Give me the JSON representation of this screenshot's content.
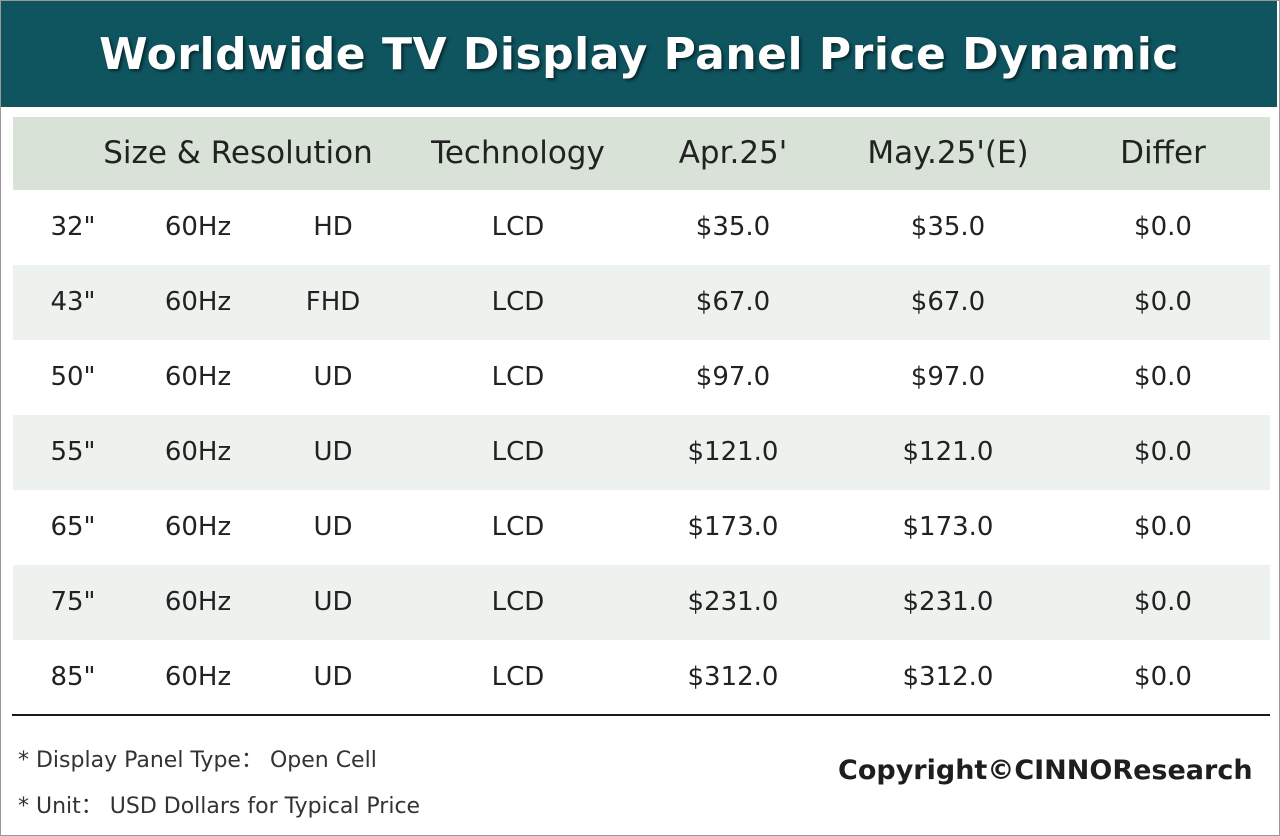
{
  "chart_data": {
    "type": "table",
    "title": "Worldwide TV Display Panel Price Dynamic",
    "columns": [
      "Size & Resolution",
      "Technology",
      "Apr.25'",
      "May.25'(E)",
      "Differ"
    ],
    "rows": [
      {
        "size": "32\"",
        "hz": "60Hz",
        "res": "HD",
        "tech": "LCD",
        "apr": "$35.0",
        "may": "$35.0",
        "diff": "$0.0"
      },
      {
        "size": "43\"",
        "hz": "60Hz",
        "res": "FHD",
        "tech": "LCD",
        "apr": "$67.0",
        "may": "$67.0",
        "diff": "$0.0"
      },
      {
        "size": "50\"",
        "hz": "60Hz",
        "res": "UD",
        "tech": "LCD",
        "apr": "$97.0",
        "may": "$97.0",
        "diff": "$0.0"
      },
      {
        "size": "55\"",
        "hz": "60Hz",
        "res": "UD",
        "tech": "LCD",
        "apr": "$121.0",
        "may": "$121.0",
        "diff": "$0.0"
      },
      {
        "size": "65\"",
        "hz": "60Hz",
        "res": "UD",
        "tech": "LCD",
        "apr": "$173.0",
        "may": "$173.0",
        "diff": "$0.0"
      },
      {
        "size": "75\"",
        "hz": "60Hz",
        "res": "UD",
        "tech": "LCD",
        "apr": "$231.0",
        "may": "$231.0",
        "diff": "$0.0"
      },
      {
        "size": "85\"",
        "hz": "60Hz",
        "res": "UD",
        "tech": "LCD",
        "apr": "$312.0",
        "may": "$312.0",
        "diff": "$0.0"
      }
    ],
    "notes": [
      "* Display Panel Type： Open Cell",
      "* Unit： USD Dollars for Typical Price"
    ],
    "copyright": "Copyright©CINNOResearch"
  },
  "colors": {
    "title_bar": "#0f5560",
    "header_bg": "#d8e2d6",
    "alt_row_bg": "#eef2ee"
  }
}
